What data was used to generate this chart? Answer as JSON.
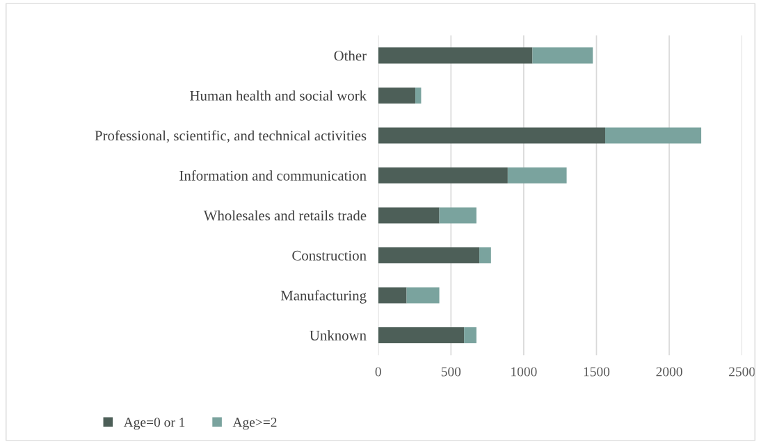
{
  "chart_data": {
    "type": "bar",
    "orientation": "horizontal",
    "stacked": true,
    "categories": [
      "Other",
      "Human health and social work",
      "Professional, scientific, and technical activities",
      "Information and communication",
      "Wholesales and retails trade",
      "Construction",
      "Manufacturing",
      "Unknown"
    ],
    "series": [
      {
        "name": "Age=0 or 1",
        "color": "#4d5f58",
        "values": [
          1060,
          255,
          1560,
          890,
          420,
          695,
          195,
          590
        ]
      },
      {
        "name": "Age>=2",
        "color": "#7aa39e",
        "values": [
          415,
          40,
          660,
          405,
          255,
          80,
          225,
          85
        ]
      }
    ],
    "xlim": [
      0,
      2500
    ],
    "xticks": [
      0,
      500,
      1000,
      1500,
      2000,
      2500
    ],
    "grid": "x",
    "legend": "bottom"
  }
}
